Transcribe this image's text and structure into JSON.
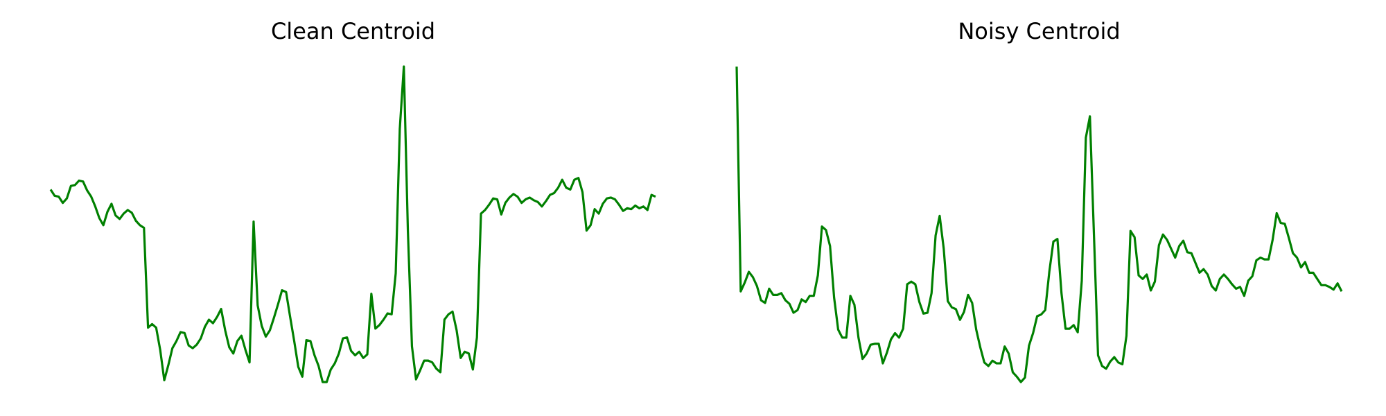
{
  "chart_data": [
    {
      "type": "line",
      "title": "Clean Centroid",
      "color": "#008000",
      "values": [
        2.27,
        2.2,
        2.19,
        2.12,
        2.17,
        2.31,
        2.32,
        2.37,
        2.36,
        2.26,
        2.19,
        2.08,
        1.95,
        1.87,
        2.02,
        2.11,
        1.98,
        1.94,
        2.0,
        2.04,
        2.01,
        1.92,
        1.87,
        1.84,
        0.72,
        0.76,
        0.72,
        0.47,
        0.13,
        0.3,
        0.49,
        0.57,
        0.67,
        0.66,
        0.52,
        0.49,
        0.53,
        0.6,
        0.73,
        0.81,
        0.77,
        0.84,
        0.93,
        0.69,
        0.5,
        0.43,
        0.57,
        0.63,
        0.47,
        0.33,
        1.91,
        0.97,
        0.74,
        0.62,
        0.69,
        0.83,
        0.98,
        1.14,
        1.12,
        0.84,
        0.57,
        0.28,
        0.17,
        0.58,
        0.57,
        0.41,
        0.29,
        0.11,
        0.11,
        0.25,
        0.32,
        0.43,
        0.6,
        0.61,
        0.46,
        0.41,
        0.45,
        0.38,
        0.42,
        1.1,
        0.71,
        0.75,
        0.81,
        0.88,
        0.87,
        1.33,
        2.95,
        3.65,
        1.8,
        0.51,
        0.14,
        0.24,
        0.35,
        0.35,
        0.33,
        0.26,
        0.22,
        0.81,
        0.87,
        0.9,
        0.69,
        0.38,
        0.45,
        0.43,
        0.25,
        0.61,
        2.0,
        2.04,
        2.1,
        2.17,
        2.16,
        1.99,
        2.12,
        2.18,
        2.22,
        2.19,
        2.12,
        2.16,
        2.18,
        2.15,
        2.13,
        2.08,
        2.14,
        2.21,
        2.23,
        2.29,
        2.38,
        2.29,
        2.27,
        2.38,
        2.4,
        2.24,
        1.81,
        1.87,
        2.05,
        2.0,
        2.11,
        2.17,
        2.18,
        2.16,
        2.1,
        2.03,
        2.06,
        2.05,
        2.09,
        2.06,
        2.08,
        2.04,
        2.21,
        2.19
      ]
    },
    {
      "type": "line",
      "title": "Noisy Centroid",
      "color": "#008000",
      "values": [
        3.65,
        1.12,
        1.22,
        1.34,
        1.28,
        1.18,
        1.02,
        0.99,
        1.15,
        1.08,
        1.08,
        1.1,
        1.02,
        0.98,
        0.88,
        0.91,
        1.03,
        1.0,
        1.07,
        1.07,
        1.3,
        1.85,
        1.81,
        1.63,
        1.05,
        0.69,
        0.6,
        0.6,
        1.07,
        0.97,
        0.6,
        0.36,
        0.42,
        0.52,
        0.53,
        0.53,
        0.31,
        0.43,
        0.58,
        0.65,
        0.6,
        0.7,
        1.2,
        1.23,
        1.2,
        1.0,
        0.87,
        0.88,
        1.1,
        1.75,
        1.97,
        1.6,
        1.01,
        0.94,
        0.92,
        0.8,
        0.89,
        1.08,
        0.99,
        0.69,
        0.49,
        0.32,
        0.28,
        0.34,
        0.31,
        0.31,
        0.5,
        0.42,
        0.21,
        0.16,
        0.1,
        0.15,
        0.51,
        0.65,
        0.84,
        0.86,
        0.91,
        1.34,
        1.68,
        1.71,
        1.1,
        0.7,
        0.7,
        0.74,
        0.66,
        1.24,
        2.85,
        3.09,
        1.75,
        0.4,
        0.28,
        0.25,
        0.33,
        0.38,
        0.32,
        0.3,
        0.62,
        1.8,
        1.73,
        1.3,
        1.26,
        1.31,
        1.13,
        1.23,
        1.64,
        1.76,
        1.7,
        1.6,
        1.5,
        1.63,
        1.69,
        1.56,
        1.55,
        1.44,
        1.33,
        1.37,
        1.31,
        1.18,
        1.13,
        1.26,
        1.31,
        1.26,
        1.2,
        1.15,
        1.17,
        1.07,
        1.24,
        1.29,
        1.47,
        1.5,
        1.48,
        1.48,
        1.7,
        2.0,
        1.89,
        1.88,
        1.72,
        1.55,
        1.5,
        1.39,
        1.45,
        1.33,
        1.33,
        1.26,
        1.19,
        1.19,
        1.17,
        1.14,
        1.21,
        1.12
      ]
    }
  ]
}
